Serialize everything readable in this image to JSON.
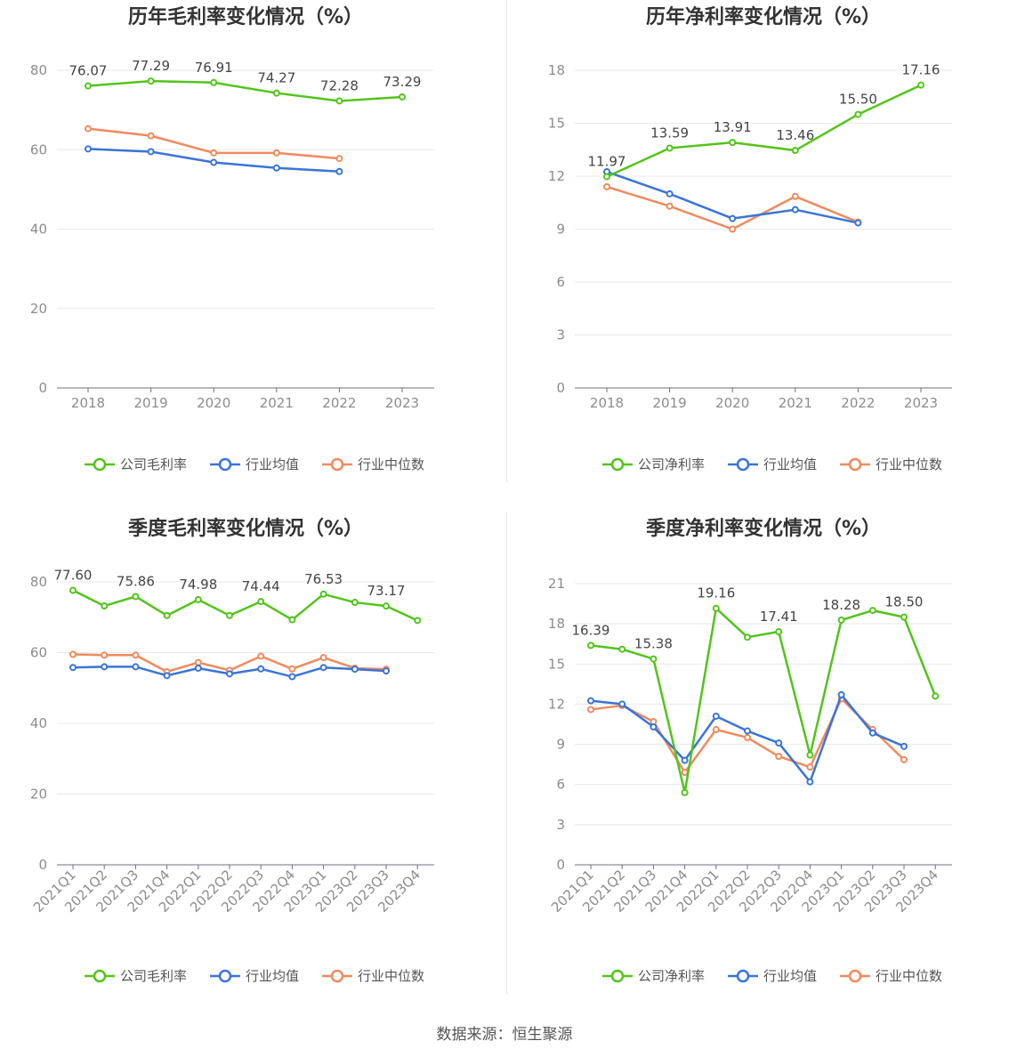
{
  "footer": "数据来源：恒生聚源",
  "chart_data": [
    {
      "type": "line",
      "title": "历年毛利率变化情况（%）",
      "categories": [
        "2018",
        "2019",
        "2020",
        "2021",
        "2022",
        "2023"
      ],
      "ylim": [
        0,
        80
      ],
      "yticks": [
        0,
        20,
        40,
        60,
        80
      ],
      "series": [
        {
          "name": "公司毛利率",
          "color": "#52c41a",
          "values": [
            76.07,
            77.29,
            76.91,
            74.27,
            72.28,
            73.29
          ],
          "labels": [
            "76.07",
            "77.29",
            "76.91",
            "74.27",
            "72.28",
            "73.29"
          ]
        },
        {
          "name": "行业均值",
          "color": "#3a74d9",
          "values": [
            60.2,
            59.5,
            56.8,
            55.4,
            54.5,
            null
          ]
        },
        {
          "name": "行业中位数",
          "color": "#f08a5d",
          "values": [
            65.3,
            63.5,
            59.2,
            59.2,
            57.8,
            null
          ]
        }
      ]
    },
    {
      "type": "line",
      "title": "历年净利率变化情况（%）",
      "categories": [
        "2018",
        "2019",
        "2020",
        "2021",
        "2022",
        "2023"
      ],
      "ylim": [
        0,
        18
      ],
      "yticks": [
        0,
        3,
        6,
        9,
        12,
        15,
        18
      ],
      "series": [
        {
          "name": "公司净利率",
          "color": "#52c41a",
          "values": [
            11.97,
            13.59,
            13.91,
            13.46,
            15.5,
            17.16
          ],
          "labels": [
            "11.97",
            "13.59",
            "13.91",
            "13.46",
            "15.50",
            "17.16"
          ]
        },
        {
          "name": "行业均值",
          "color": "#3a74d9",
          "values": [
            12.25,
            11.0,
            9.6,
            10.1,
            9.35,
            null
          ]
        },
        {
          "name": "行业中位数",
          "color": "#f08a5d",
          "values": [
            11.4,
            10.3,
            9.0,
            10.85,
            9.4,
            null
          ]
        }
      ]
    },
    {
      "type": "line",
      "title": "季度毛利率变化情况（%）",
      "categories": [
        "2021Q1",
        "2021Q2",
        "2021Q3",
        "2021Q4",
        "2022Q1",
        "2022Q2",
        "2022Q3",
        "2022Q4",
        "2023Q1",
        "2023Q2",
        "2023Q3",
        "2023Q4"
      ],
      "ylim": [
        0,
        80
      ],
      "yticks": [
        0,
        20,
        40,
        60,
        80
      ],
      "series": [
        {
          "name": "公司毛利率",
          "color": "#52c41a",
          "values": [
            77.6,
            73.2,
            75.86,
            70.5,
            74.98,
            70.5,
            74.44,
            69.3,
            76.53,
            74.2,
            73.17,
            69.1
          ],
          "labels": [
            "77.60",
            "",
            "75.86",
            "",
            "74.98",
            "",
            "74.44",
            "",
            "76.53",
            "",
            "73.17",
            ""
          ]
        },
        {
          "name": "行业均值",
          "color": "#3a74d9",
          "values": [
            55.8,
            56.0,
            56.0,
            53.5,
            55.6,
            54.0,
            55.4,
            53.2,
            55.8,
            55.3,
            54.8,
            null
          ]
        },
        {
          "name": "行业中位数",
          "color": "#f08a5d",
          "values": [
            59.5,
            59.3,
            59.3,
            54.6,
            57.2,
            55.0,
            59.0,
            55.4,
            58.6,
            55.6,
            55.3,
            null
          ]
        }
      ]
    },
    {
      "type": "line",
      "title": "季度净利率变化情况（%）",
      "categories": [
        "2021Q1",
        "2021Q2",
        "2021Q3",
        "2021Q4",
        "2022Q1",
        "2022Q2",
        "2022Q3",
        "2022Q4",
        "2023Q1",
        "2023Q2",
        "2023Q3",
        "2023Q4"
      ],
      "ylim": [
        0,
        21
      ],
      "yticks": [
        0,
        3,
        6,
        9,
        12,
        15,
        18,
        21
      ],
      "series": [
        {
          "name": "公司净利率",
          "color": "#52c41a",
          "values": [
            16.39,
            16.1,
            15.38,
            5.4,
            19.16,
            17.0,
            17.41,
            8.2,
            18.28,
            19.0,
            18.5,
            12.6
          ],
          "labels": [
            "16.39",
            "",
            "15.38",
            "",
            "19.16",
            "",
            "17.41",
            "",
            "18.28",
            "",
            "18.50",
            ""
          ]
        },
        {
          "name": "行业均值",
          "color": "#3a74d9",
          "values": [
            12.25,
            12.0,
            10.3,
            7.8,
            11.1,
            10.0,
            9.1,
            6.2,
            12.7,
            9.85,
            8.85,
            null
          ]
        },
        {
          "name": "行业中位数",
          "color": "#f08a5d",
          "values": [
            11.6,
            11.9,
            10.7,
            6.9,
            10.1,
            9.5,
            8.1,
            7.3,
            12.4,
            10.1,
            7.85,
            null
          ]
        }
      ]
    }
  ]
}
